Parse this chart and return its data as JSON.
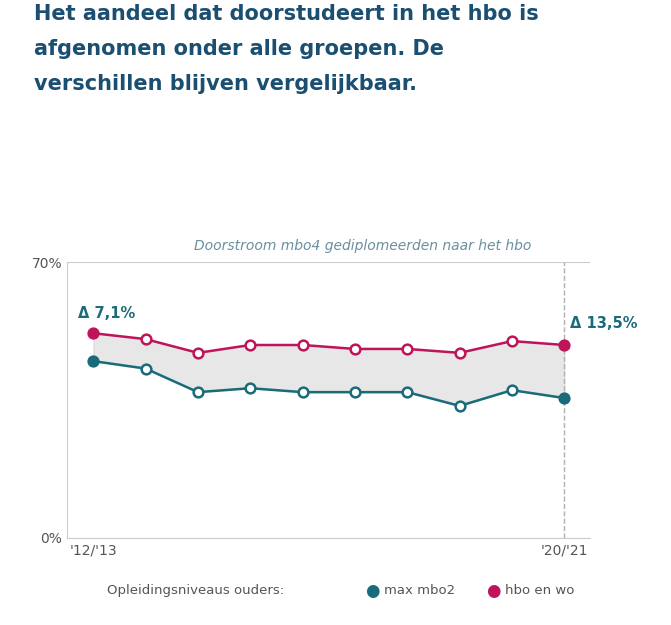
{
  "title_lines": [
    "Het aandeel dat doorstudeert in het hbo is",
    "afgenomen onder alle groepen. De",
    "verschillen blijven vergelijkbaar."
  ],
  "subtitle": "Doorstroom mbo4 gediplomeerden naar het hbo",
  "title_color": "#1b4f72",
  "subtitle_color": "#6b8fa0",
  "background_color": "#ffffff",
  "n_points": 10,
  "x_tick_labels": [
    "'12/'13",
    "'20/'21"
  ],
  "hbo_en_wo": [
    52.0,
    50.5,
    47.0,
    49.0,
    49.0,
    48.0,
    48.0,
    47.0,
    50.0,
    49.0
  ],
  "max_mbo2": [
    44.9,
    43.0,
    37.0,
    38.0,
    37.0,
    37.0,
    37.0,
    33.5,
    37.5,
    35.5
  ],
  "hbo_en_wo_color": "#c0145a",
  "max_mbo2_color": "#1a6b7a",
  "fill_color": "#d8d8d8",
  "fill_alpha": 0.6,
  "ylim_min": 0,
  "ylim_max": 70,
  "delta_start": "Δ 7,1%",
  "delta_end": "Δ 13,5%",
  "legend_prefix": "Opleidingsniveaus ouders:",
  "legend_mbo2": "max mbo2",
  "legend_hbo": "hbo en wo",
  "dashed_color": "#b0b0b0",
  "axis_color": "#cccccc",
  "tick_color": "#555555",
  "marker_size": 7,
  "linewidth": 1.8
}
